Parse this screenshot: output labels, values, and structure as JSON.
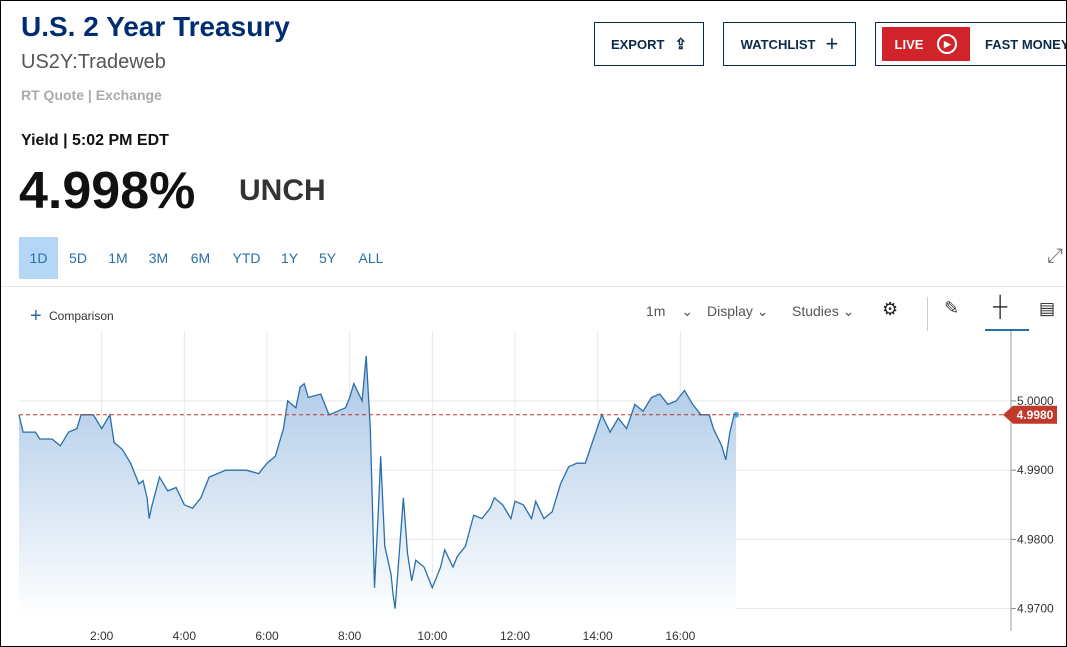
{
  "header": {
    "title": "U.S. 2 Year Treasury",
    "symbol": "US2Y:Tradeweb",
    "quote_source": "RT Quote | Exchange"
  },
  "quote": {
    "label": "Yield | 5:02 PM EDT",
    "value": "4.998%",
    "change": "UNCH"
  },
  "buttons": [
    "EXPORT",
    "WATCHLIST",
    "LIVE",
    "FAST MONEY"
  ],
  "ranges": [
    "1D",
    "5D",
    "1M",
    "3M",
    "6M",
    "YTD",
    "1Y",
    "5Y",
    "ALL"
  ],
  "toolbar": {
    "comparison": "Comparison",
    "interval": "1m",
    "display": "Display",
    "studies": "Studies"
  },
  "chart_data": {
    "type": "line",
    "color": "#2a6fa8",
    "x": [
      0.0,
      0.1,
      0.4,
      0.5,
      0.8,
      1.0,
      1.2,
      1.4,
      1.5,
      1.8,
      2.0,
      2.2,
      2.3,
      2.5,
      2.7,
      2.9,
      3.0,
      3.1,
      3.15,
      3.2,
      3.4,
      3.6,
      3.8,
      4.0,
      4.2,
      4.4,
      4.6,
      5.0,
      5.5,
      5.8,
      6.0,
      6.2,
      6.4,
      6.5,
      6.7,
      6.8,
      6.9,
      7.0,
      7.3,
      7.5,
      7.7,
      7.9,
      8.0,
      8.1,
      8.3,
      8.4,
      8.5,
      8.55,
      8.6,
      8.7,
      8.75,
      8.85,
      9.0,
      9.05,
      9.1,
      9.3,
      9.4,
      9.5,
      9.6,
      9.8,
      10.0,
      10.2,
      10.3,
      10.5,
      10.6,
      10.8,
      11.0,
      11.2,
      11.4,
      11.5,
      11.7,
      11.9,
      12.0,
      12.2,
      12.4,
      12.5,
      12.7,
      12.9,
      13.1,
      13.3,
      13.5,
      13.7,
      13.9,
      14.1,
      14.3,
      14.5,
      14.7,
      14.9,
      15.1,
      15.3,
      15.5,
      15.7,
      15.9,
      16.1,
      16.3,
      16.5,
      16.7,
      16.8,
      17.0,
      17.1,
      17.2,
      17.3,
      17.35
    ],
    "values": [
      4.998,
      4.9955,
      4.9955,
      4.9945,
      4.9945,
      4.9935,
      4.9955,
      4.996,
      4.998,
      4.998,
      4.996,
      4.998,
      4.994,
      4.993,
      4.991,
      4.988,
      4.9885,
      4.986,
      4.983,
      4.9845,
      4.989,
      4.987,
      4.9875,
      4.985,
      4.9845,
      4.986,
      4.989,
      4.99,
      4.99,
      4.9895,
      4.991,
      4.992,
      4.996,
      5.0,
      4.999,
      5.002,
      5.0025,
      5.0005,
      5.001,
      4.998,
      4.9985,
      4.999,
      5.0005,
      5.0025,
      5.0,
      5.0065,
      4.996,
      4.985,
      4.973,
      4.985,
      4.992,
      4.979,
      4.975,
      4.972,
      4.97,
      4.986,
      4.978,
      4.974,
      4.977,
      4.976,
      4.973,
      4.976,
      4.9785,
      4.976,
      4.9775,
      4.979,
      4.9835,
      4.983,
      4.9845,
      4.986,
      4.985,
      4.983,
      4.9855,
      4.985,
      4.983,
      4.9855,
      4.983,
      4.984,
      4.988,
      4.9905,
      4.991,
      4.991,
      4.9945,
      4.998,
      4.9955,
      4.9975,
      4.996,
      4.9995,
      4.9985,
      5.0005,
      5.001,
      4.9995,
      5.0,
      5.0015,
      4.9995,
      4.998,
      4.998,
      4.996,
      4.9935,
      4.9915,
      4.9955,
      4.998,
      4.998
    ],
    "xlim": [
      0,
      24
    ],
    "ylim": [
      4.9685,
      5.0101
    ],
    "xticks": [
      {
        "value": 2,
        "label": "2:00"
      },
      {
        "value": 4,
        "label": "4:00"
      },
      {
        "value": 6,
        "label": "6:00"
      },
      {
        "value": 8,
        "label": "8:00"
      },
      {
        "value": 10,
        "label": "10:00"
      },
      {
        "value": 12,
        "label": "12:00"
      },
      {
        "value": 14,
        "label": "14:00"
      },
      {
        "value": 16,
        "label": "16:00"
      }
    ],
    "yticks": [
      {
        "value": 4.97,
        "label": "4.9700"
      },
      {
        "value": 4.98,
        "label": "4.9800"
      },
      {
        "value": 4.99,
        "label": "4.9900"
      },
      {
        "value": 5.0,
        "label": "5.0000"
      }
    ],
    "grid": true,
    "reference": {
      "value": 4.998,
      "label": "4.9980"
    }
  }
}
